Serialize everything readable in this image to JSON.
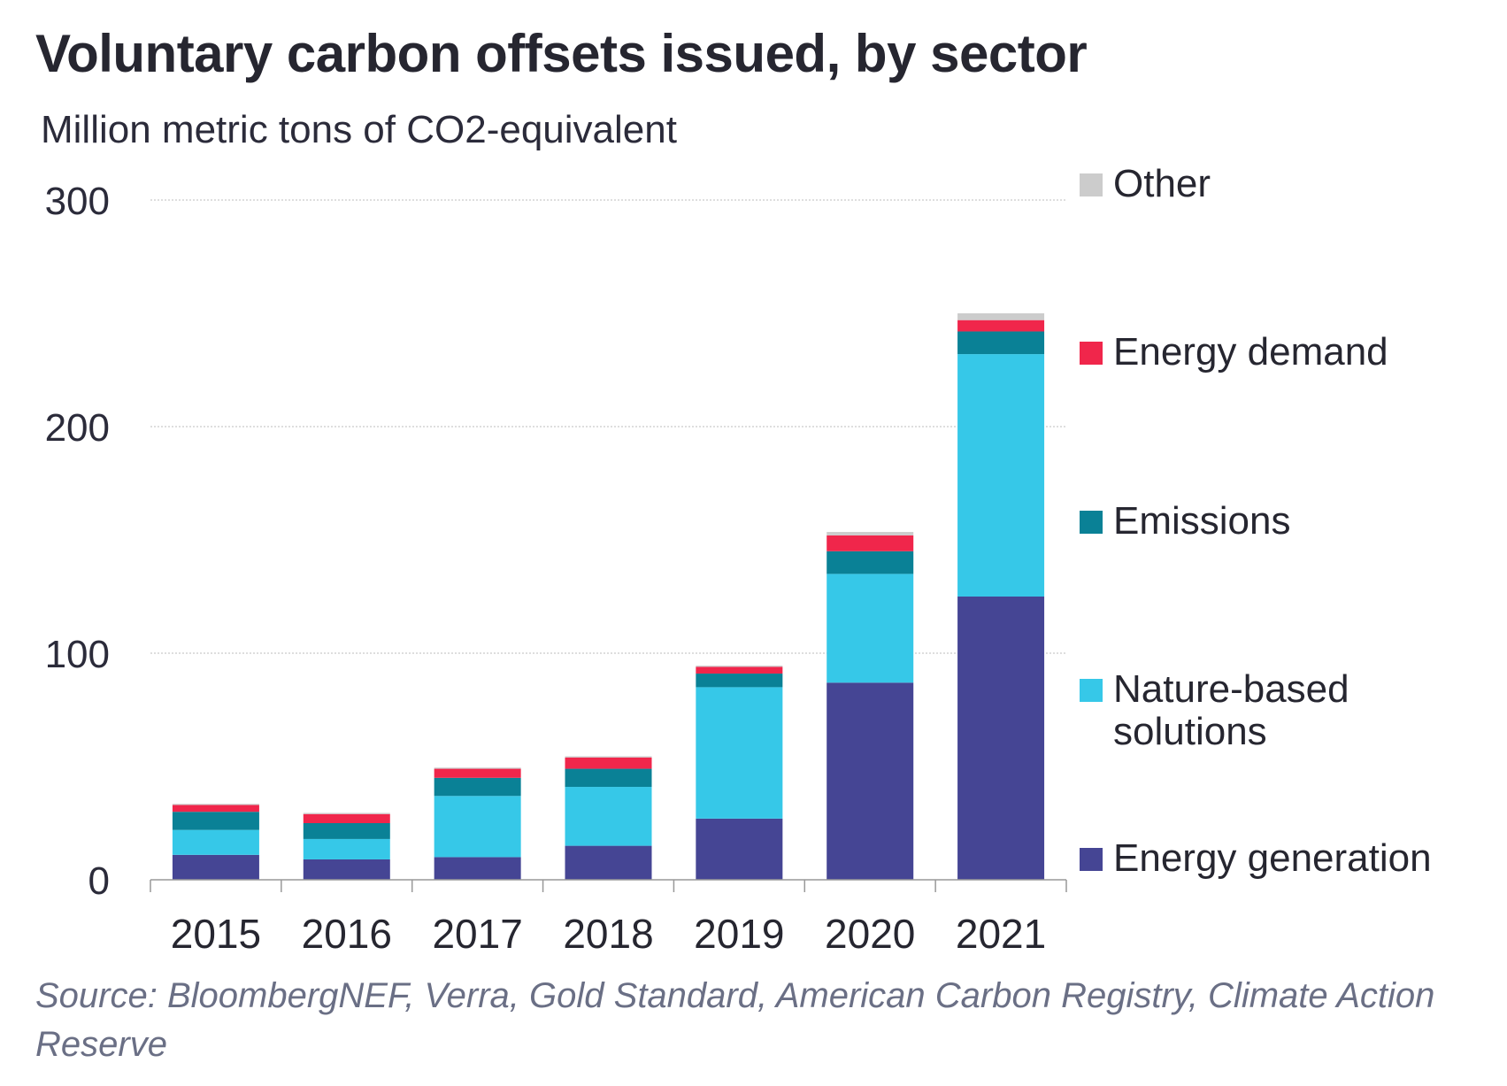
{
  "title": "Voluntary carbon offsets issued, by sector",
  "subtitle": "Million metric tons of CO2-equivalent",
  "source": "Source: BloombergNEF, Verra, Gold Standard, American Carbon Registry, Climate Action Reserve",
  "colors": {
    "Energy generation": "#454594",
    "Nature-based solutions": "#36c8e8",
    "Emissions": "#0a8196",
    "Energy demand": "#f0264b",
    "Other": "#cccccc",
    "grid": "#bdbdbd",
    "axis": "#999999"
  },
  "chart_data": {
    "type": "bar",
    "stacked": true,
    "categories": [
      "2015",
      "2016",
      "2017",
      "2018",
      "2019",
      "2020",
      "2021"
    ],
    "series": [
      {
        "name": "Energy generation",
        "values": [
          11,
          9,
          10,
          15,
          27,
          87,
          125
        ]
      },
      {
        "name": "Nature-based solutions",
        "values": [
          11,
          9,
          27,
          26,
          58,
          48,
          107
        ]
      },
      {
        "name": "Emissions",
        "values": [
          8,
          7,
          8,
          8,
          6,
          10,
          10
        ]
      },
      {
        "name": "Energy demand",
        "values": [
          3,
          4,
          4,
          5,
          3,
          7,
          5
        ]
      },
      {
        "name": "Other",
        "values": [
          0.5,
          0.5,
          0.5,
          0.5,
          0.5,
          1.5,
          3
        ]
      }
    ],
    "yticks": [
      0,
      100,
      200,
      300
    ],
    "ylim": [
      0,
      300
    ],
    "grid": true,
    "legend_position": "right",
    "legend_order": [
      "Other",
      "Energy demand",
      "Emissions",
      "Nature-based solutions",
      "Energy generation"
    ],
    "legend_labels": {
      "Other": [
        "Other"
      ],
      "Energy demand": [
        "Energy demand"
      ],
      "Emissions": [
        "Emissions"
      ],
      "Nature-based solutions": [
        "Nature-based",
        "solutions"
      ],
      "Energy generation": [
        "Energy generation"
      ]
    }
  }
}
